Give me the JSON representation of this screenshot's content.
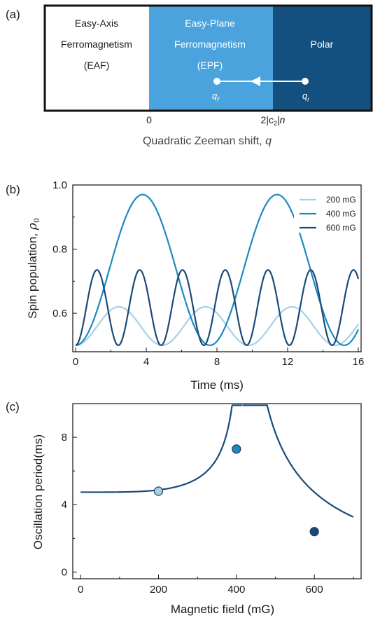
{
  "colors": {
    "c200": "#a8cfe6",
    "c400": "#1c8ac0",
    "c600": "#1a4a78",
    "eaf_bg": "#ffffff",
    "epf_bg": "#4aa3dc",
    "polar_bg": "#13507f",
    "curve": "#1a4a78"
  },
  "panel_a": {
    "label": "(a)",
    "regions": [
      {
        "lines": [
          "Easy-Axis",
          "Ferromagnetism",
          "(EAF)"
        ]
      },
      {
        "lines": [
          "Easy-Plane",
          "Ferromagnetism",
          "(EPF)"
        ]
      },
      {
        "lines": [
          "Polar"
        ]
      }
    ],
    "qf": "q",
    "qf_sub": "f",
    "qi": "q",
    "qi_sub": "i",
    "tick_zero": "0",
    "tick_c2_prefix": "2|c",
    "tick_c2_sub": "2",
    "tick_c2_suffix": "|n",
    "xlabel_text": "Quadratic Zeeman shift, ",
    "xlabel_var": "q"
  },
  "chart_data": [
    {
      "panel": "(b)",
      "type": "line",
      "xlabel": "Time (ms)",
      "ylabel_text": "Spin population, ",
      "ylabel_sym": "ρ",
      "ylabel_sub": "0",
      "xlim": [
        0,
        16
      ],
      "ylim": [
        0.48,
        1.0
      ],
      "xticks": [
        0,
        4,
        8,
        12,
        16
      ],
      "yticks": [
        "0.6",
        "0.8",
        "1.0"
      ],
      "legend_position": "top-right",
      "series": [
        {
          "name": "200 mG",
          "min": 0.5,
          "max": 0.62,
          "period_ms": 4.9,
          "phase_ms": 0.0
        },
        {
          "name": "400 mG",
          "min": 0.5,
          "max": 0.97,
          "period_ms": 7.6,
          "phase_ms": 0.0
        },
        {
          "name": "600 mG",
          "min": 0.5,
          "max": 0.735,
          "period_ms": 2.42,
          "phase_ms": 0.0
        }
      ]
    },
    {
      "panel": "(c)",
      "type": "line",
      "xlabel": "Magnetic field (mG)",
      "ylabel": "Oscillation period(ms)",
      "xlim": [
        -20,
        720
      ],
      "ylim": [
        -0.4,
        10
      ],
      "xticks": [
        "0",
        "200",
        "400",
        "600"
      ],
      "yticks": [
        "0",
        "4",
        "8"
      ],
      "curve_peak_field": 415,
      "markers": [
        {
          "x": 200,
          "y": 4.8
        },
        {
          "x": 400,
          "y": 7.3
        },
        {
          "x": 600,
          "y": 2.4
        }
      ]
    }
  ]
}
